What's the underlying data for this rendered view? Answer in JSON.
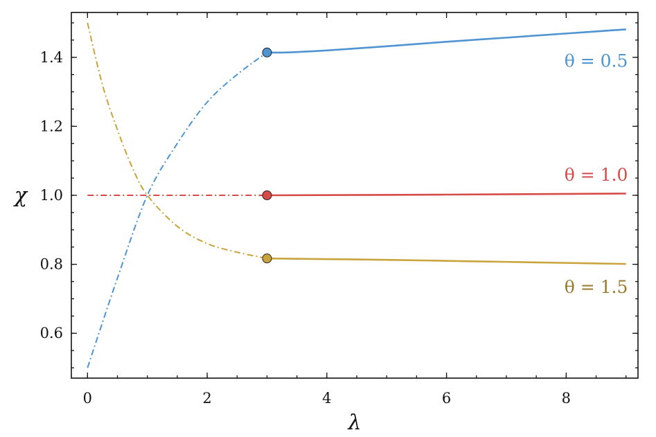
{
  "chart_data": {
    "type": "line",
    "xlabel": "λ",
    "ylabel": "χ",
    "xlim": [
      -0.27,
      9.2
    ],
    "ylim": [
      0.47,
      1.53
    ],
    "x_ticks": [
      0,
      2,
      4,
      6,
      8
    ],
    "x_tick_labels": [
      "0",
      "2",
      "4",
      "6",
      "8"
    ],
    "y_ticks": [
      0.6,
      0.8,
      1.0,
      1.2,
      1.4
    ],
    "y_tick_labels": [
      "0.6",
      "0.8",
      "1.0",
      "1.2",
      "1.4"
    ],
    "x_minor_step": 0.5,
    "y_minor_step": 0.05,
    "ticks_direction": "in",
    "ticks_on_all_sides": true,
    "grid": false,
    "legend": "none",
    "transition_x": 3,
    "series": [
      {
        "name": "θ = 0.5",
        "color": "#4f94d1",
        "dashed_segment": {
          "style": "dash-dot",
          "x": [
            0,
            0.5,
            1,
            1.5,
            2,
            2.5,
            3
          ],
          "y": [
            0.5,
            0.76,
            1.0,
            1.15,
            1.27,
            1.35,
            1.414
          ]
        },
        "solid_segment": {
          "style": "solid",
          "x": [
            3,
            3.3,
            4,
            5,
            6,
            7,
            8,
            9
          ],
          "y": [
            1.414,
            1.414,
            1.42,
            1.432,
            1.445,
            1.457,
            1.469,
            1.481
          ]
        },
        "marker": {
          "x": 3,
          "y": 1.414
        },
        "label": {
          "text": "θ = 0.5",
          "x": 8.5,
          "y": 1.39
        }
      },
      {
        "name": "θ = 1.0",
        "color": "#d64a47",
        "dashed_segment": {
          "style": "dash-dot",
          "x": [
            0,
            3
          ],
          "y": [
            1.0,
            1.0
          ]
        },
        "solid_segment": {
          "style": "solid",
          "x": [
            3,
            6,
            9
          ],
          "y": [
            1.0,
            1.002,
            1.005
          ]
        },
        "marker": {
          "x": 3,
          "y": 1.0
        },
        "label": {
          "text": "θ = 1.0",
          "x": 8.5,
          "y": 1.06
        }
      },
      {
        "name": "θ = 1.5",
        "color": "#c9a43c",
        "label_color": "#9a7a2e",
        "dashed_segment": {
          "style": "dash-dot",
          "x": [
            0,
            0.25,
            0.5,
            0.75,
            1,
            1.5,
            2,
            2.5,
            3
          ],
          "y": [
            1.5,
            1.32,
            1.19,
            1.08,
            1.0,
            0.91,
            0.86,
            0.835,
            0.817
          ]
        },
        "solid_segment": {
          "style": "solid",
          "x": [
            3,
            4,
            5,
            6,
            7,
            8,
            9
          ],
          "y": [
            0.817,
            0.815,
            0.813,
            0.81,
            0.807,
            0.804,
            0.801
          ]
        },
        "marker": {
          "x": 3,
          "y": 0.817
        },
        "label": {
          "text": "θ = 1.5",
          "x": 8.5,
          "y": 0.735
        }
      }
    ]
  }
}
